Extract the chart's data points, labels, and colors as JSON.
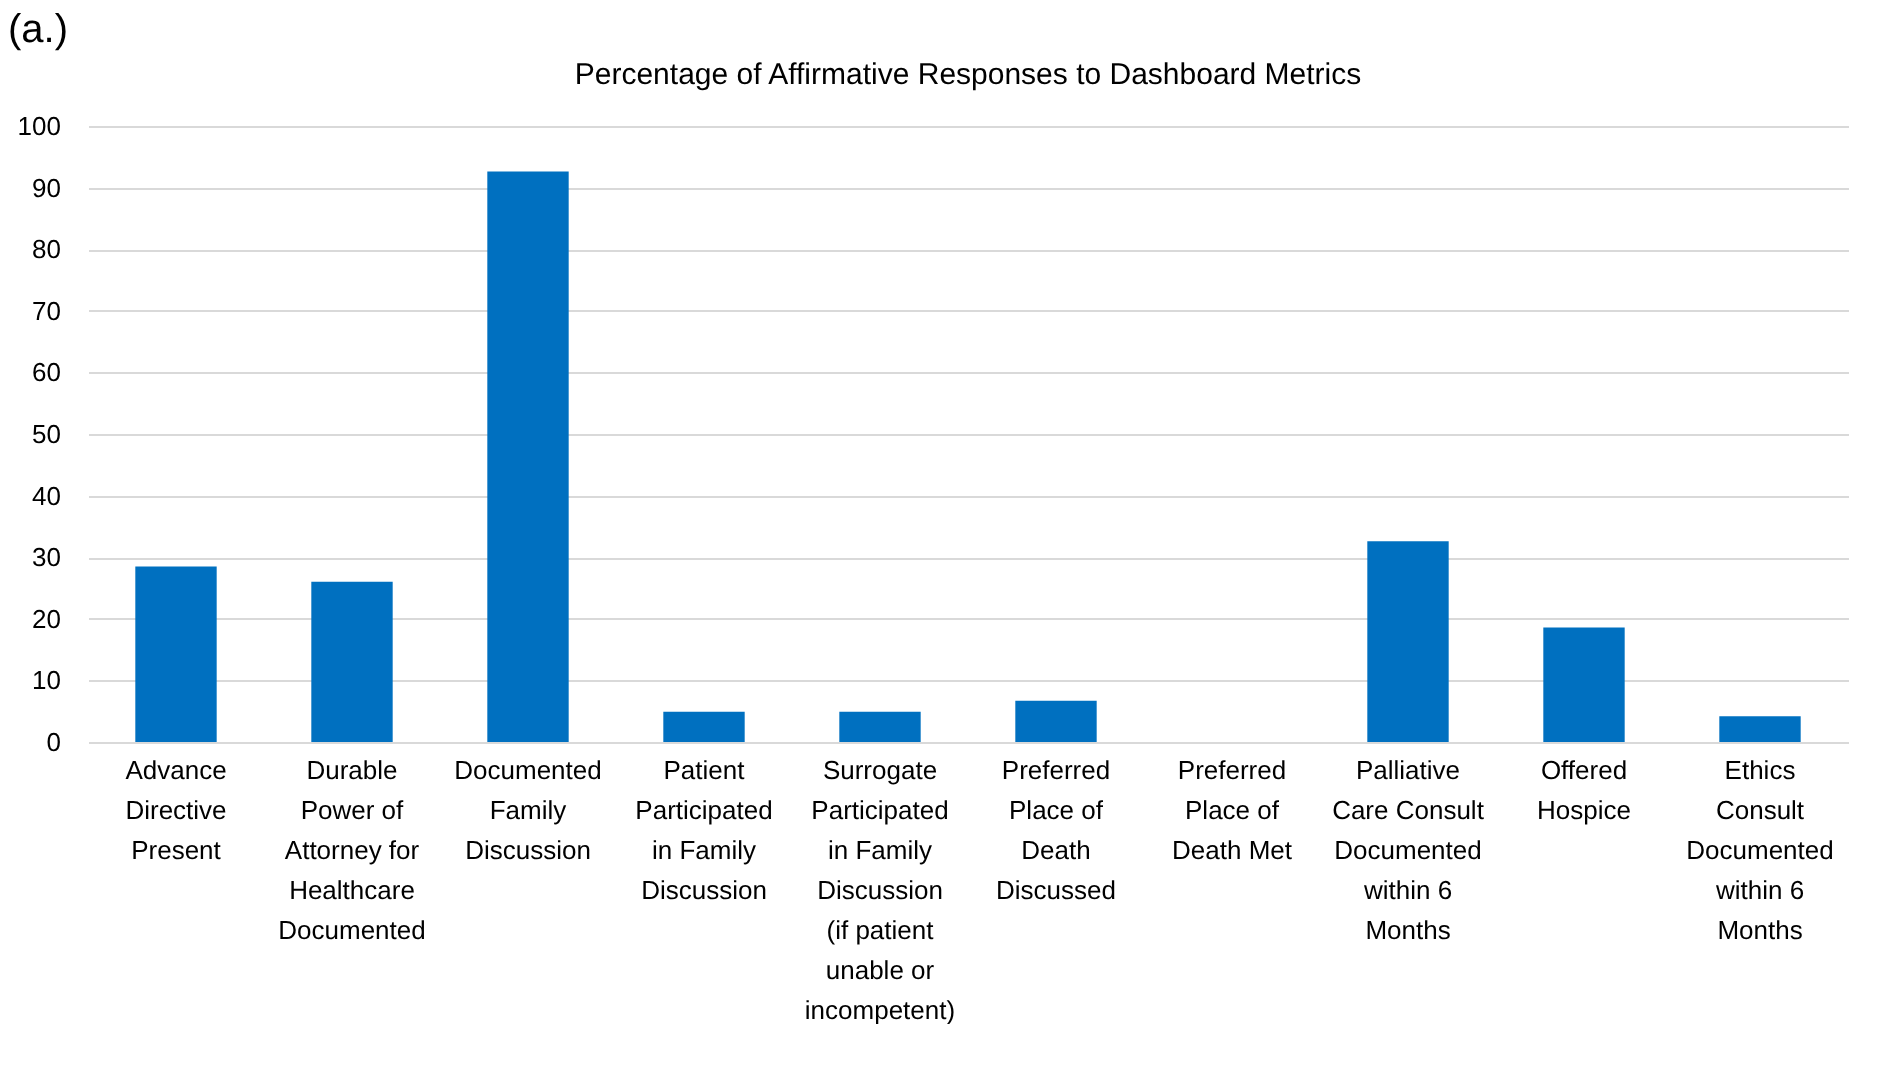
{
  "chart_data": {
    "type": "bar",
    "title": "Percentage of Affirmative Responses to Dashboard Metrics",
    "annotations": [
      "(a.)"
    ],
    "categories": [
      "Advance Directive Present",
      "Durable Power of Attorney for Healthcare Documented",
      "Documented Family Discussion",
      "Patient Participated in Family Discussion",
      "Surrogate Participated in Family Discussion (if patient unable or incompetent)",
      "Preferred Place of Death Discussed",
      "Preferred Place of Death Met",
      "Palliative Care Consult Documented within 6 Months",
      "Offered Hospice",
      "Ethics Consult Documented within 6 Months"
    ],
    "values": [
      28.5,
      26,
      92.6,
      4.9,
      4.9,
      6.7,
      0,
      32.6,
      18.6,
      4.2
    ],
    "color": "#0070c0",
    "ylim": [
      0,
      100
    ],
    "yticks": [
      0,
      10,
      20,
      30,
      40,
      50,
      60,
      70,
      80,
      90,
      100
    ],
    "grid": "y"
  }
}
